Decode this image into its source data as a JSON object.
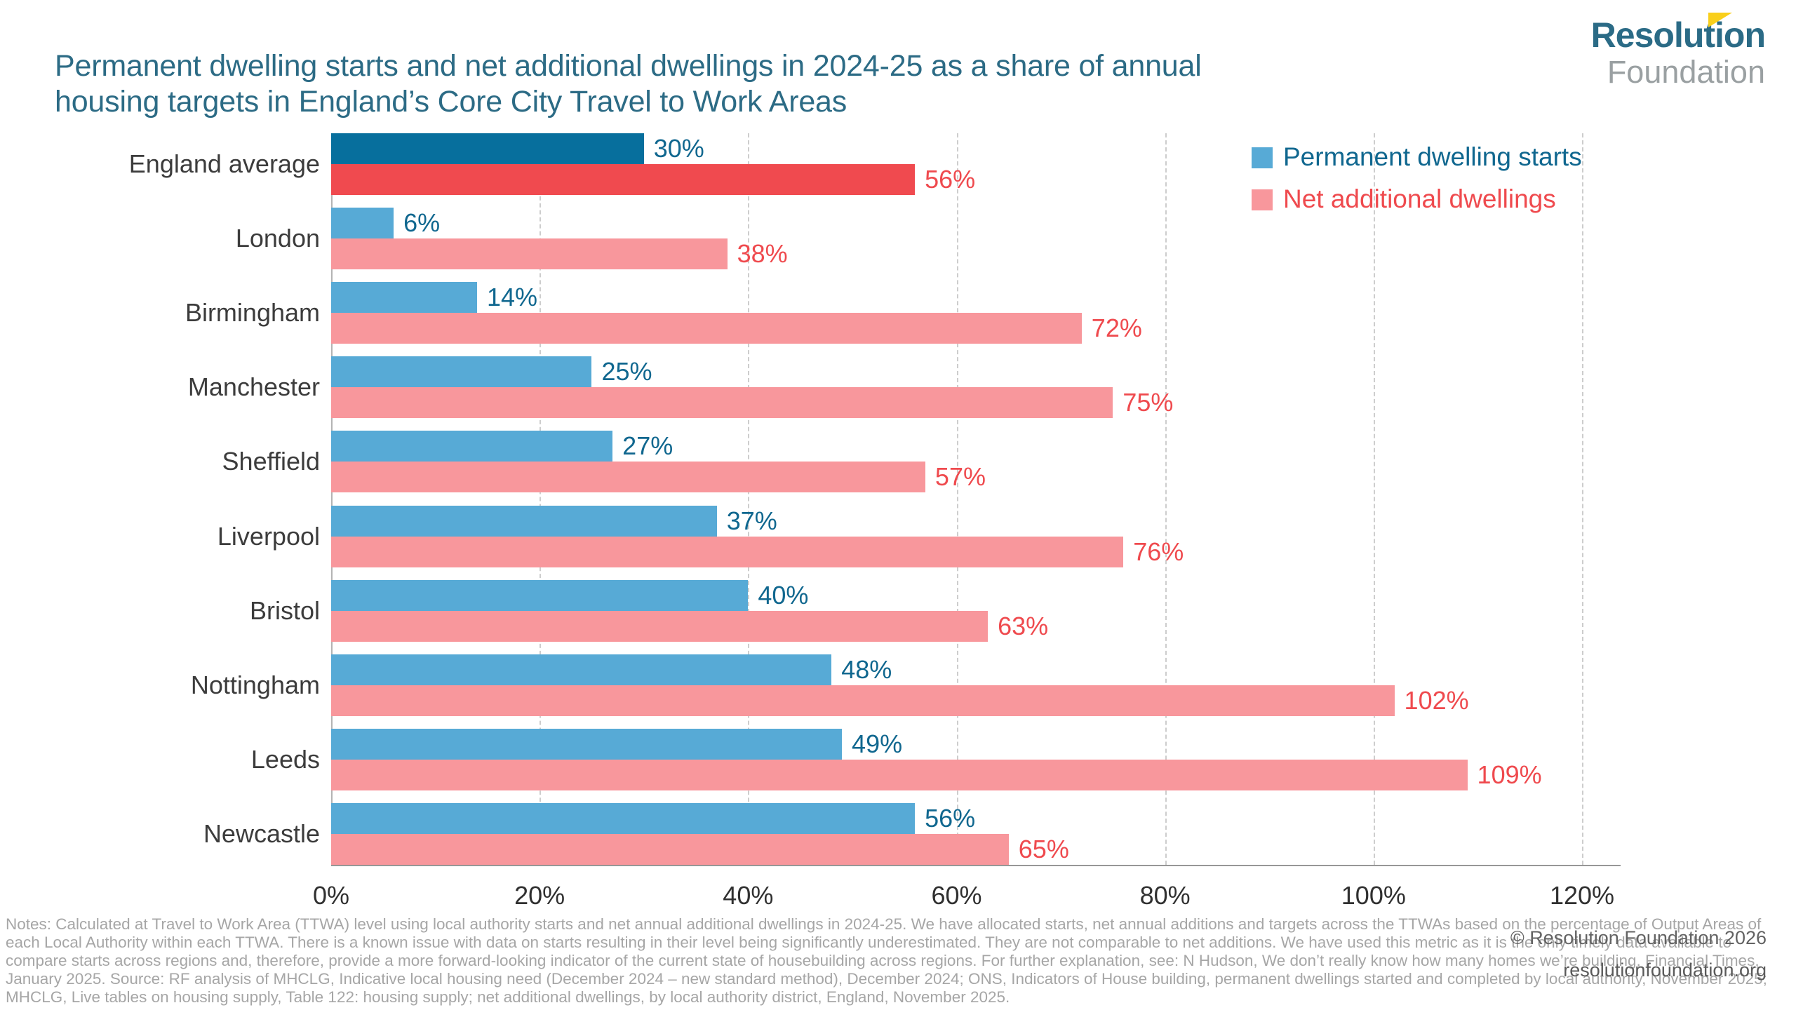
{
  "header": {
    "title_line1": "Permanent dwelling starts and net additional dwellings in 2024-25 as a share of annual",
    "title_line2": "housing targets in England’s Core City Travel to Work Areas",
    "logo": {
      "line1": "Resolution",
      "line2": "Foundation",
      "flag_color": "#f9cf1b"
    }
  },
  "legend": {
    "items": [
      {
        "label": "Permanent dwelling starts",
        "swatch_color": "#57aad6",
        "text_color": "#10678f"
      },
      {
        "label": "Net additional dwellings",
        "swatch_color": "#f8979c",
        "text_color": "#ef4a4e"
      }
    ]
  },
  "chart_data": {
    "type": "bar",
    "orientation": "horizontal",
    "title": "Permanent dwelling starts and net additional dwellings in 2024-25 as a share of annual housing targets in England’s Core City Travel to Work Areas",
    "categories": [
      "England average",
      "London",
      "Birmingham",
      "Manchester",
      "Sheffield",
      "Liverpool",
      "Bristol",
      "Nottingham",
      "Leeds",
      "Newcastle"
    ],
    "series": [
      {
        "name": "Permanent dwelling starts",
        "values": [
          30,
          6,
          14,
          25,
          27,
          37,
          40,
          48,
          49,
          56
        ],
        "color": "#57aad6",
        "highlight_color": "#076f9d",
        "label_color": "#10678f"
      },
      {
        "name": "Net additional dwellings",
        "values": [
          56,
          38,
          72,
          75,
          57,
          76,
          63,
          102,
          109,
          65
        ],
        "color": "#f8979c",
        "highlight_color": "#f04a4f",
        "label_color": "#ef4a4e"
      }
    ],
    "value_suffix": "%",
    "xlim": [
      0,
      120
    ],
    "xticks": [
      {
        "value": 0,
        "label": "0%"
      },
      {
        "value": 20,
        "label": "20%"
      },
      {
        "value": 40,
        "label": "40%"
      },
      {
        "value": 60,
        "label": "60%"
      },
      {
        "value": 80,
        "label": "80%"
      },
      {
        "value": 100,
        "label": "100%"
      },
      {
        "value": 120,
        "label": "120%"
      }
    ],
    "grid": "dashed-vertical",
    "legend_position": "top-right",
    "highlight_category_index": 0
  },
  "notes": "Notes: Calculated at Travel to Work Area (TTWA) level using local authority starts and net annual additional dwellings in 2024-25. We have allocated starts, net annual additions and targets across the TTWAs based on the percentage of Output Areas of each Local Authority within each TTWA. There is a known issue with data on starts resulting in their level being significantly underestimated. They are not comparable to net additions. We have used this metric as it is the only timely data available to compare starts across regions and, therefore, provide a more forward-looking indicator of the current state of housebuilding across regions. For further explanation, see: N Hudson, We don’t really know how many homes we’re building, Financial Times, January 2025. Source: RF analysis of MHCLG, Indicative local housing need (December 2024 – new standard method), December 2024; ONS, Indicators of House building, permanent dwellings started and completed by local authority, November 2025; MHCLG, Live tables on housing supply, Table 122: housing supply; net additional dwellings, by local authority district, England, November 2025.",
  "footer": {
    "copyright": "© Resolution Foundation 2026",
    "website": "resolutionfoundation.org"
  }
}
